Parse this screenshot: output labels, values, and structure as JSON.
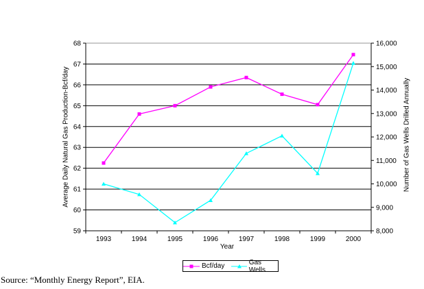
{
  "source_note": "Source: “Monthly Energy Report”, EIA.",
  "chart_data": {
    "type": "line",
    "title": "",
    "x": {
      "label": "Year",
      "categories": [
        "1993",
        "1994",
        "1995",
        "1996",
        "1997",
        "1998",
        "1999",
        "2000"
      ]
    },
    "y_left": {
      "label": "Average Daily Natural Gas Production-Bcf/day",
      "min": 59,
      "max": 68,
      "step": 1
    },
    "y_right": {
      "label": "Number of Gas Wells Drilled Annually",
      "min": 8000,
      "max": 16000,
      "step": 1000
    },
    "grid": "horizontal-major",
    "legend_position": "bottom-center",
    "series": [
      {
        "name": "Bcf/day",
        "axis": "left",
        "color": "#FF00FF",
        "marker": "square",
        "values": [
          62.25,
          64.6,
          65.0,
          65.9,
          66.35,
          65.55,
          65.05,
          67.45
        ]
      },
      {
        "name": "Gas Wells",
        "axis": "right",
        "color": "#00FFFF",
        "marker": "triangle",
        "values": [
          10000,
          9550,
          8350,
          9300,
          11300,
          12050,
          10450,
          15150
        ]
      }
    ]
  }
}
